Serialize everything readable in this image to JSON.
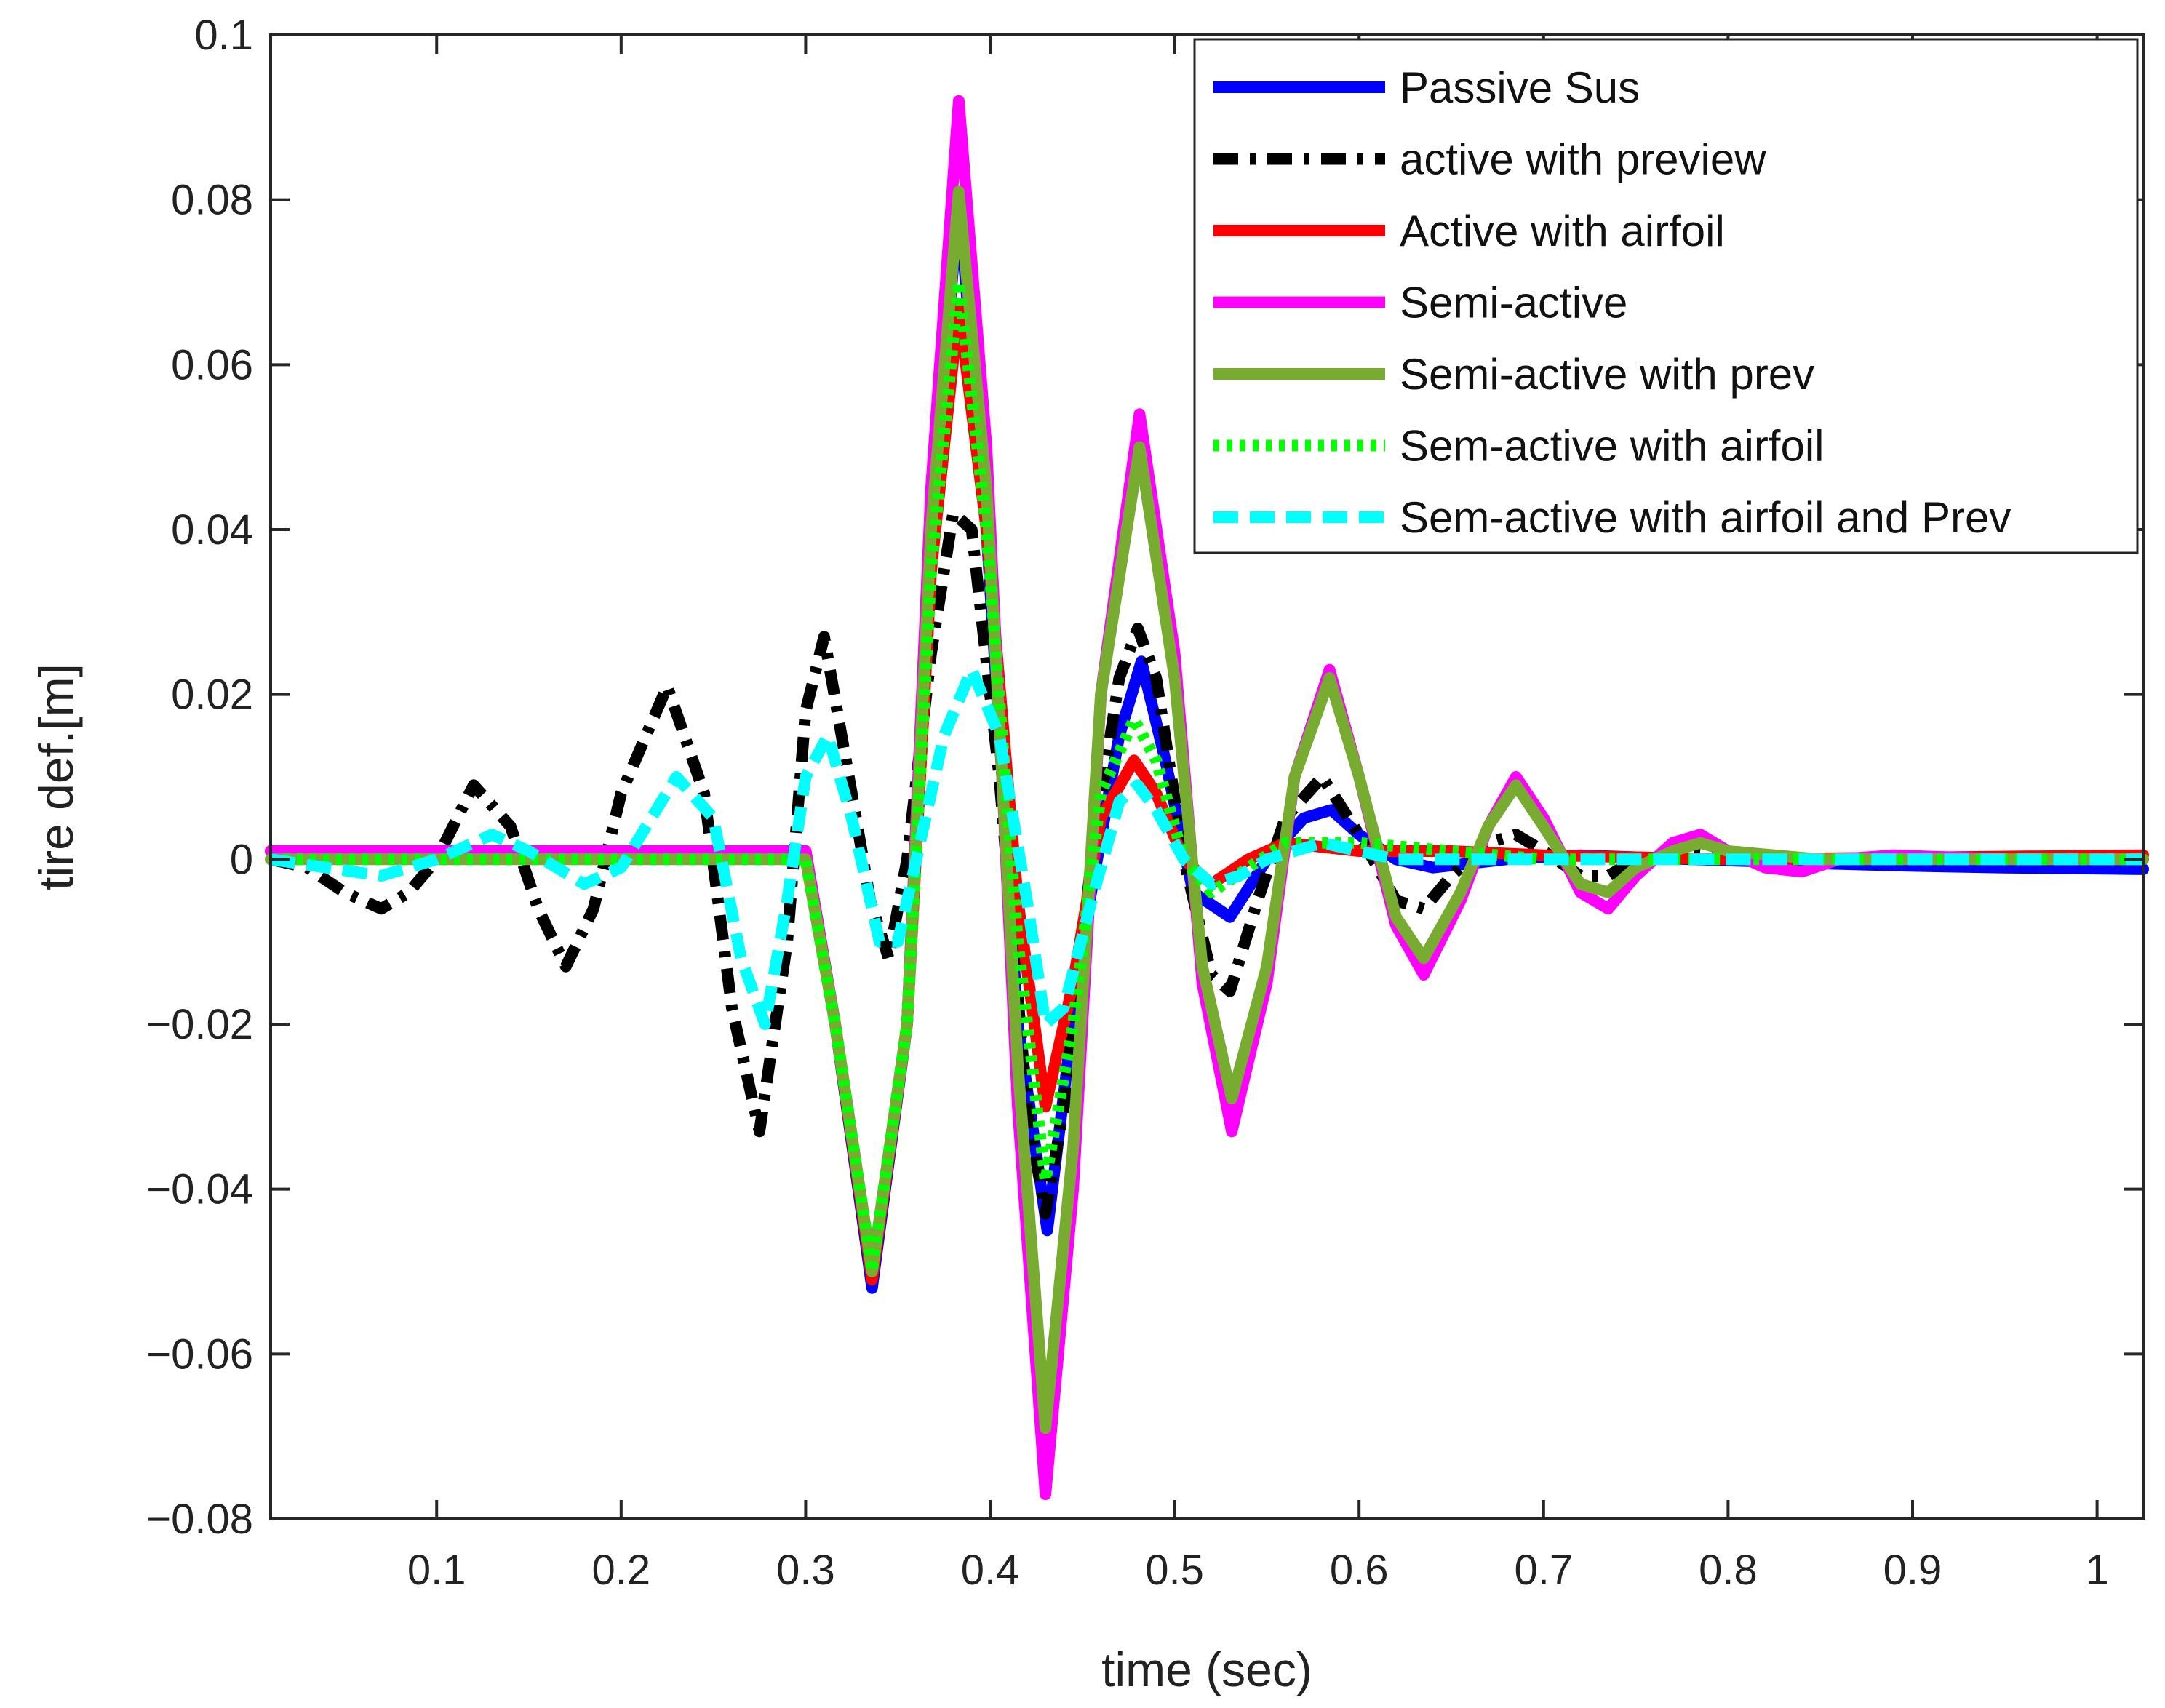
{
  "chart_data": {
    "type": "line",
    "title": "",
    "xlabel": "time (sec)",
    "ylabel": "tire def.[m]",
    "xlim": [
      0.01,
      1.025
    ],
    "ylim": [
      -0.08,
      0.1
    ],
    "xticks": [
      0.1,
      0.2,
      0.3,
      0.4,
      0.5,
      0.6,
      0.7,
      0.8,
      0.9,
      1
    ],
    "xtick_labels": [
      "0.1",
      "0.2",
      "0.3",
      "0.4",
      "0.5",
      "0.6",
      "0.7",
      "0.8",
      "0.9",
      "1"
    ],
    "yticks": [
      -0.08,
      -0.06,
      -0.04,
      -0.02,
      0,
      0.02,
      0.04,
      0.06,
      0.08,
      0.1
    ],
    "ytick_labels": [
      "−0.08",
      "−0.06",
      "−0.04",
      "−0.02",
      "0",
      "0.02",
      "0.04",
      "0.06",
      "0.08",
      "0.1"
    ],
    "grid": false,
    "legend_position": "top-right",
    "series": [
      {
        "name": "Passive Sus",
        "color": "#0000ff",
        "dash": "solid",
        "points": [
          [
            0.01,
            0.001
          ],
          [
            0.3,
            0.001
          ],
          [
            0.316,
            -0.02
          ],
          [
            0.336,
            -0.052
          ],
          [
            0.355,
            -0.02
          ],
          [
            0.368,
            0.04
          ],
          [
            0.383,
            0.08
          ],
          [
            0.398,
            0.04
          ],
          [
            0.415,
            -0.02
          ],
          [
            0.431,
            -0.045
          ],
          [
            0.45,
            -0.01
          ],
          [
            0.47,
            0.015
          ],
          [
            0.482,
            0.024
          ],
          [
            0.495,
            0.012
          ],
          [
            0.51,
            -0.004
          ],
          [
            0.53,
            -0.007
          ],
          [
            0.55,
            0.0
          ],
          [
            0.57,
            0.005
          ],
          [
            0.585,
            0.006
          ],
          [
            0.6,
            0.003
          ],
          [
            0.62,
            0.0
          ],
          [
            0.64,
            -0.001
          ],
          [
            0.68,
            0.0
          ],
          [
            0.72,
            0.0005
          ],
          [
            0.78,
            0.0
          ],
          [
            0.85,
            -0.0005
          ],
          [
            0.9,
            -0.0008
          ],
          [
            0.95,
            -0.001
          ],
          [
            1.025,
            -0.0012
          ]
        ]
      },
      {
        "name": "active with preview",
        "color": "#000000",
        "dash": "dashdot",
        "points": [
          [
            0.01,
            0.0
          ],
          [
            0.03,
            -0.001
          ],
          [
            0.05,
            -0.004
          ],
          [
            0.07,
            -0.006
          ],
          [
            0.085,
            -0.004
          ],
          [
            0.1,
            0.0
          ],
          [
            0.12,
            0.009
          ],
          [
            0.14,
            0.004
          ],
          [
            0.155,
            -0.006
          ],
          [
            0.17,
            -0.013
          ],
          [
            0.185,
            -0.006
          ],
          [
            0.2,
            0.008
          ],
          [
            0.225,
            0.021
          ],
          [
            0.245,
            0.008
          ],
          [
            0.26,
            -0.018
          ],
          [
            0.275,
            -0.033
          ],
          [
            0.29,
            -0.01
          ],
          [
            0.3,
            0.018
          ],
          [
            0.31,
            0.027
          ],
          [
            0.325,
            0.008
          ],
          [
            0.335,
            -0.005
          ],
          [
            0.345,
            -0.012
          ],
          [
            0.355,
            0.0
          ],
          [
            0.368,
            0.025
          ],
          [
            0.38,
            0.042
          ],
          [
            0.39,
            0.04
          ],
          [
            0.405,
            0.01
          ],
          [
            0.42,
            -0.03
          ],
          [
            0.43,
            -0.043
          ],
          [
            0.44,
            -0.03
          ],
          [
            0.455,
            0.0
          ],
          [
            0.47,
            0.022
          ],
          [
            0.48,
            0.028
          ],
          [
            0.49,
            0.022
          ],
          [
            0.505,
            0.0
          ],
          [
            0.52,
            -0.014
          ],
          [
            0.53,
            -0.016
          ],
          [
            0.545,
            -0.005
          ],
          [
            0.56,
            0.005
          ],
          [
            0.58,
            0.01
          ],
          [
            0.6,
            0.003
          ],
          [
            0.62,
            -0.005
          ],
          [
            0.635,
            -0.006
          ],
          [
            0.65,
            -0.002
          ],
          [
            0.67,
            0.002
          ],
          [
            0.685,
            0.003
          ],
          [
            0.7,
            0.001
          ],
          [
            0.72,
            -0.002
          ],
          [
            0.735,
            -0.002
          ],
          [
            0.75,
            0.0
          ],
          [
            0.78,
            0.001
          ],
          [
            0.82,
            0.0
          ],
          [
            1.025,
            0.0
          ]
        ]
      },
      {
        "name": "Active with airfoil",
        "color": "#ff0000",
        "dash": "solid",
        "points": [
          [
            0.01,
            0.001
          ],
          [
            0.3,
            0.001
          ],
          [
            0.316,
            -0.02
          ],
          [
            0.336,
            -0.051
          ],
          [
            0.355,
            -0.02
          ],
          [
            0.368,
            0.035
          ],
          [
            0.383,
            0.067
          ],
          [
            0.398,
            0.04
          ],
          [
            0.415,
            -0.005
          ],
          [
            0.43,
            -0.03
          ],
          [
            0.445,
            -0.015
          ],
          [
            0.46,
            0.005
          ],
          [
            0.478,
            0.012
          ],
          [
            0.49,
            0.008
          ],
          [
            0.505,
            0.0
          ],
          [
            0.52,
            -0.003
          ],
          [
            0.54,
            0.0
          ],
          [
            0.56,
            0.002
          ],
          [
            0.6,
            0.001
          ],
          [
            0.65,
            0.001
          ],
          [
            0.7,
            0.0005
          ],
          [
            0.8,
            0.0
          ],
          [
            1.025,
            0.0005
          ]
        ]
      },
      {
        "name": "Semi-active",
        "color": "#ff00ff",
        "dash": "solid",
        "points": [
          [
            0.01,
            0.001
          ],
          [
            0.3,
            0.001
          ],
          [
            0.316,
            -0.02
          ],
          [
            0.336,
            -0.05
          ],
          [
            0.355,
            -0.02
          ],
          [
            0.368,
            0.045
          ],
          [
            0.383,
            0.092
          ],
          [
            0.398,
            0.05
          ],
          [
            0.415,
            -0.03
          ],
          [
            0.43,
            -0.077
          ],
          [
            0.445,
            -0.04
          ],
          [
            0.46,
            0.02
          ],
          [
            0.481,
            0.054
          ],
          [
            0.5,
            0.025
          ],
          [
            0.515,
            -0.015
          ],
          [
            0.531,
            -0.033
          ],
          [
            0.55,
            -0.015
          ],
          [
            0.565,
            0.01
          ],
          [
            0.584,
            0.023
          ],
          [
            0.6,
            0.01
          ],
          [
            0.62,
            -0.008
          ],
          [
            0.635,
            -0.014
          ],
          [
            0.655,
            -0.005
          ],
          [
            0.67,
            0.004
          ],
          [
            0.685,
            0.01
          ],
          [
            0.7,
            0.005
          ],
          [
            0.72,
            -0.004
          ],
          [
            0.735,
            -0.006
          ],
          [
            0.75,
            -0.002
          ],
          [
            0.77,
            0.002
          ],
          [
            0.785,
            0.003
          ],
          [
            0.8,
            0.001
          ],
          [
            0.82,
            -0.001
          ],
          [
            0.84,
            -0.0015
          ],
          [
            0.86,
            0.0
          ],
          [
            0.89,
            0.0005
          ],
          [
            0.95,
            0.0
          ],
          [
            1.025,
            0.0
          ]
        ]
      },
      {
        "name": "Semi-active with prev",
        "color": "#77ac30",
        "dash": "solid",
        "points": [
          [
            0.01,
            0.0
          ],
          [
            0.3,
            0.0
          ],
          [
            0.316,
            -0.02
          ],
          [
            0.336,
            -0.05
          ],
          [
            0.355,
            -0.02
          ],
          [
            0.368,
            0.04
          ],
          [
            0.383,
            0.081
          ],
          [
            0.398,
            0.045
          ],
          [
            0.415,
            -0.025
          ],
          [
            0.43,
            -0.069
          ],
          [
            0.445,
            -0.035
          ],
          [
            0.46,
            0.02
          ],
          [
            0.481,
            0.05
          ],
          [
            0.5,
            0.022
          ],
          [
            0.515,
            -0.013
          ],
          [
            0.531,
            -0.029
          ],
          [
            0.55,
            -0.013
          ],
          [
            0.565,
            0.01
          ],
          [
            0.584,
            0.022
          ],
          [
            0.6,
            0.01
          ],
          [
            0.62,
            -0.007
          ],
          [
            0.635,
            -0.012
          ],
          [
            0.655,
            -0.004
          ],
          [
            0.67,
            0.004
          ],
          [
            0.685,
            0.009
          ],
          [
            0.7,
            0.004
          ],
          [
            0.72,
            -0.003
          ],
          [
            0.735,
            -0.004
          ],
          [
            0.75,
            -0.001
          ],
          [
            0.77,
            0.001
          ],
          [
            0.785,
            0.002
          ],
          [
            0.8,
            0.001
          ],
          [
            0.85,
            0.0
          ],
          [
            1.025,
            0.0
          ]
        ]
      },
      {
        "name": "Sem-active with airfoil",
        "color": "#00ff00",
        "dash": "dotted",
        "points": [
          [
            0.01,
            0.0
          ],
          [
            0.3,
            0.0
          ],
          [
            0.316,
            -0.02
          ],
          [
            0.336,
            -0.05
          ],
          [
            0.355,
            -0.02
          ],
          [
            0.368,
            0.035
          ],
          [
            0.383,
            0.07
          ],
          [
            0.398,
            0.04
          ],
          [
            0.415,
            -0.01
          ],
          [
            0.43,
            -0.039
          ],
          [
            0.445,
            -0.02
          ],
          [
            0.46,
            0.008
          ],
          [
            0.478,
            0.017
          ],
          [
            0.49,
            0.012
          ],
          [
            0.505,
            0.0
          ],
          [
            0.52,
            -0.004
          ],
          [
            0.54,
            -0.001
          ],
          [
            0.56,
            0.002
          ],
          [
            0.6,
            0.002
          ],
          [
            0.65,
            0.001
          ],
          [
            0.7,
            0.0
          ],
          [
            1.025,
            0.0
          ]
        ]
      },
      {
        "name": "Sem-active with airfoil and Prev",
        "color": "#00ffff",
        "dash": "dashed",
        "points": [
          [
            0.01,
            0.0
          ],
          [
            0.04,
            -0.001
          ],
          [
            0.07,
            -0.002
          ],
          [
            0.1,
            0.0
          ],
          [
            0.13,
            0.003
          ],
          [
            0.15,
            0.001
          ],
          [
            0.18,
            -0.003
          ],
          [
            0.2,
            -0.001
          ],
          [
            0.23,
            0.01
          ],
          [
            0.25,
            0.005
          ],
          [
            0.265,
            -0.012
          ],
          [
            0.278,
            -0.02
          ],
          [
            0.29,
            -0.005
          ],
          [
            0.3,
            0.01
          ],
          [
            0.312,
            0.015
          ],
          [
            0.325,
            0.005
          ],
          [
            0.34,
            -0.01
          ],
          [
            0.35,
            -0.01
          ],
          [
            0.36,
            0.0
          ],
          [
            0.375,
            0.015
          ],
          [
            0.39,
            0.023
          ],
          [
            0.405,
            0.015
          ],
          [
            0.42,
            -0.005
          ],
          [
            0.43,
            -0.02
          ],
          [
            0.44,
            -0.018
          ],
          [
            0.455,
            -0.005
          ],
          [
            0.47,
            0.007
          ],
          [
            0.48,
            0.009
          ],
          [
            0.49,
            0.006
          ],
          [
            0.505,
            0.0
          ],
          [
            0.52,
            -0.003
          ],
          [
            0.535,
            -0.002
          ],
          [
            0.55,
            0.0
          ],
          [
            0.58,
            0.002
          ],
          [
            0.62,
            0.0
          ],
          [
            0.7,
            0.0
          ],
          [
            1.025,
            0.0
          ]
        ]
      }
    ]
  }
}
